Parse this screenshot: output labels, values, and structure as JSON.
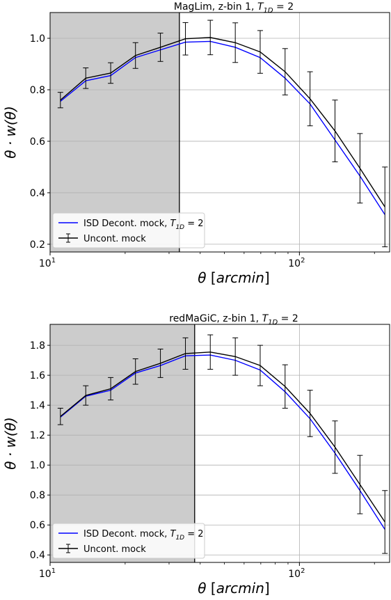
{
  "chart_data": [
    {
      "type": "line",
      "title_parts": {
        "text": "MagLim, z-bin 1, ",
        "var": "T",
        "sub": "1D",
        "suffix": " =  2"
      },
      "xlabel_parts": {
        "var": "θ",
        "unit": "arcmin"
      },
      "ylabel_parts": {
        "text": "θ · w(θ)"
      },
      "xscale": "log",
      "xlim": [
        10,
        230
      ],
      "ylim": [
        0.17,
        1.1
      ],
      "xticks": [
        {
          "value": 10,
          "label": "10",
          "sup": "1"
        },
        {
          "value": 100,
          "label": "10",
          "sup": "2"
        }
      ],
      "yticks": [
        0.2,
        0.4,
        0.6,
        0.8,
        1.0
      ],
      "ytick_labels": [
        "0.2",
        "0.4",
        "0.6",
        "0.8",
        "1.0"
      ],
      "shaded_region": {
        "x_from": 10,
        "x_to": 33,
        "color": "#cccccc"
      },
      "grid": true,
      "legend": {
        "position": "lower-left",
        "entries": [
          {
            "prefix": "ISD Decont. mock, ",
            "var": "T",
            "sub": "1D",
            "suffix": " = 2",
            "color": "#0000ff",
            "kind": "line"
          },
          {
            "prefix": "Uncont. mock",
            "var": "",
            "sub": "",
            "suffix": "",
            "color": "#000000",
            "kind": "errorbar"
          }
        ]
      },
      "x": [
        11.0,
        13.9,
        17.5,
        22.0,
        27.7,
        34.9,
        43.9,
        55.3,
        69.6,
        87.6,
        110.3,
        138.9,
        174.9,
        220.2
      ],
      "series": [
        {
          "color": "#0000ff",
          "values": [
            0.755,
            0.835,
            0.855,
            0.925,
            0.955,
            0.985,
            0.988,
            0.965,
            0.925,
            0.845,
            0.745,
            0.605,
            0.465,
            0.315
          ]
        },
        {
          "color": "#000000",
          "values": [
            0.76,
            0.845,
            0.865,
            0.933,
            0.965,
            0.998,
            1.003,
            0.983,
            0.947,
            0.87,
            0.765,
            0.64,
            0.495,
            0.345
          ],
          "yerr": [
            0.03,
            0.04,
            0.04,
            0.05,
            0.055,
            0.063,
            0.067,
            0.077,
            0.083,
            0.09,
            0.105,
            0.12,
            0.135,
            0.155
          ]
        }
      ]
    },
    {
      "type": "line",
      "title_parts": {
        "text": "redMaGiC, z-bin 1, ",
        "var": "T",
        "sub": "1D",
        "suffix": " =  2"
      },
      "xlabel_parts": {
        "var": "θ",
        "unit": "arcmin"
      },
      "ylabel_parts": {
        "text": "θ · w(θ)"
      },
      "xscale": "log",
      "xlim": [
        10,
        230
      ],
      "ylim": [
        0.35,
        1.94
      ],
      "xticks": [
        {
          "value": 10,
          "label": "10",
          "sup": "1"
        },
        {
          "value": 100,
          "label": "10",
          "sup": "2"
        }
      ],
      "yticks": [
        0.4,
        0.6,
        0.8,
        1.0,
        1.2,
        1.4,
        1.6,
        1.8
      ],
      "ytick_labels": [
        "0.4",
        "0.6",
        "0.8",
        "1.0",
        "1.2",
        "1.4",
        "1.6",
        "1.8"
      ],
      "shaded_region": {
        "x_from": 10,
        "x_to": 38,
        "color": "#cccccc"
      },
      "grid": true,
      "legend": {
        "position": "lower-left",
        "entries": [
          {
            "prefix": "ISD Decont. mock, ",
            "var": "T",
            "sub": "1D",
            "suffix": " = 2",
            "color": "#0000ff",
            "kind": "line"
          },
          {
            "prefix": "Uncont. mock",
            "var": "",
            "sub": "",
            "suffix": "",
            "color": "#000000",
            "kind": "errorbar"
          }
        ]
      },
      "x": [
        11.0,
        13.9,
        17.5,
        22.0,
        27.7,
        34.9,
        43.9,
        55.3,
        69.6,
        87.6,
        110.3,
        138.9,
        174.9,
        220.2
      ],
      "series": [
        {
          "color": "#0000ff",
          "values": [
            1.32,
            1.46,
            1.5,
            1.615,
            1.665,
            1.73,
            1.735,
            1.7,
            1.635,
            1.49,
            1.31,
            1.08,
            0.83,
            0.57
          ],
          "yerr": null
        },
        {
          "color": "#000000",
          "values": [
            1.325,
            1.465,
            1.51,
            1.625,
            1.68,
            1.745,
            1.755,
            1.725,
            1.665,
            1.525,
            1.345,
            1.12,
            0.87,
            0.62
          ],
          "yerr": [
            0.055,
            0.065,
            0.075,
            0.085,
            0.095,
            0.105,
            0.115,
            0.125,
            0.135,
            0.145,
            0.155,
            0.175,
            0.195,
            0.21
          ]
        }
      ]
    }
  ]
}
